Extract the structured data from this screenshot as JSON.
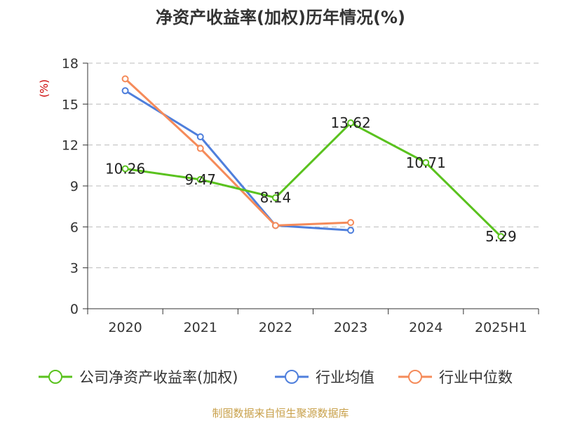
{
  "chart_data": {
    "type": "line",
    "title": "净资产收益率(加权)历年情况(%)",
    "ylabel": "(%)",
    "xlabel": "",
    "categories": [
      "2020",
      "2021",
      "2022",
      "2023",
      "2024",
      "2025H1"
    ],
    "ylim": [
      0,
      18
    ],
    "yticks": [
      "0",
      "3",
      "6",
      "9",
      "12",
      "15",
      "18"
    ],
    "grid": true,
    "legend_position": "bottom",
    "series": [
      {
        "name": "公司净资产收益率(加权)",
        "color": "#5ac21e",
        "values": [
          10.26,
          9.47,
          8.14,
          13.62,
          10.71,
          5.29
        ],
        "labels": [
          "10.26",
          "9.47",
          "8.14",
          "13.62",
          "10.71",
          "5.29"
        ]
      },
      {
        "name": "行业均值",
        "color": "#4f7fdc",
        "values": [
          15.98,
          12.6,
          6.1,
          5.75,
          null,
          null
        ]
      },
      {
        "name": "行业中位数",
        "color": "#f58b5a",
        "values": [
          16.85,
          11.75,
          6.1,
          6.32,
          null,
          null
        ]
      }
    ]
  },
  "source": "制图数据来自恒生聚源数据库",
  "colors": {
    "axis": "#333333",
    "grid": "#bbbbbb",
    "ylabel": "#cc0000",
    "source": "#c8a04a"
  }
}
